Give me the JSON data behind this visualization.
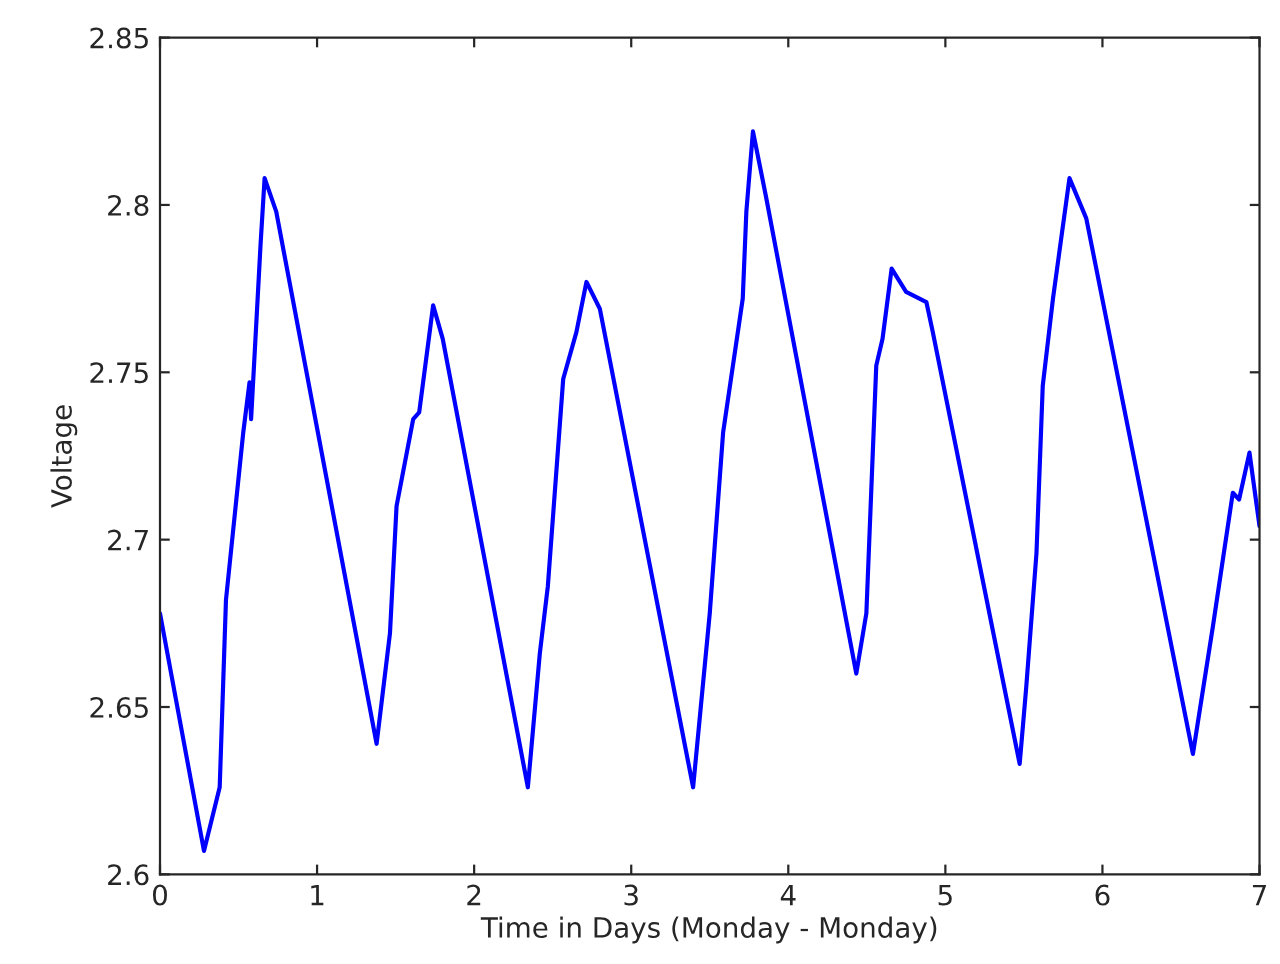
{
  "chart_data": {
    "type": "line",
    "xlabel": "Time in Days (Monday - Monday)",
    "ylabel": "Voltage",
    "x": [
      0,
      0.28,
      0.38,
      0.42,
      0.53,
      0.57,
      0.58,
      0.64,
      0.666,
      0.74,
      1.379,
      1.464,
      1.506,
      1.612,
      1.65,
      1.739,
      1.8,
      2.342,
      2.418,
      2.469,
      2.567,
      2.651,
      2.715,
      2.8,
      3.394,
      3.5,
      3.585,
      3.71,
      3.733,
      3.775,
      3.86,
      4.433,
      4.497,
      4.56,
      4.6,
      4.658,
      4.75,
      4.879,
      4.92,
      5.473,
      5.515,
      5.58,
      5.62,
      5.685,
      5.79,
      5.897,
      6.576,
      6.703,
      6.83,
      6.87,
      6.936,
      7.0
    ],
    "series": [
      {
        "color": "#0000ff",
        "values": [
          2.678,
          2.607,
          2.626,
          2.682,
          2.732,
          2.747,
          2.736,
          2.788,
          2.808,
          2.798,
          2.639,
          2.672,
          2.71,
          2.736,
          2.738,
          2.77,
          2.76,
          2.626,
          2.666,
          2.686,
          2.748,
          2.762,
          2.777,
          2.769,
          2.626,
          2.678,
          2.732,
          2.772,
          2.798,
          2.822,
          2.802,
          2.66,
          2.678,
          2.752,
          2.76,
          2.781,
          2.774,
          2.771,
          2.762,
          2.633,
          2.656,
          2.696,
          2.746,
          2.772,
          2.808,
          2.796,
          2.636,
          2.674,
          2.714,
          2.712,
          2.726,
          2.704
        ]
      }
    ],
    "xlim": [
      0,
      7
    ],
    "xticks": [
      0,
      1,
      2,
      3,
      4,
      5,
      6,
      7
    ],
    "ylim": [
      2.6,
      2.85
    ],
    "yticks": [
      2.6,
      2.65,
      2.7,
      2.75,
      2.8,
      2.85
    ],
    "grid": false
  }
}
